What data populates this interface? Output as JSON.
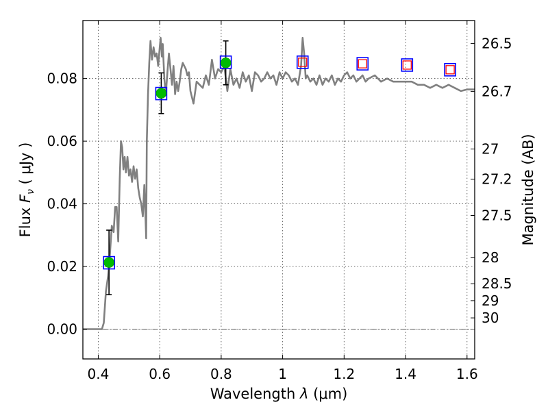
{
  "chart_data": {
    "type": "scatter",
    "xlabel": "Wavelength",
    "xlabel_symbol": "λ",
    "xlabel_unit": "(μm)",
    "ylabel": "Flux",
    "ylabel_symbol": "F",
    "ylabel_sub": "ν",
    "ylabel_unit": "( μJy )",
    "y2label": "Magnitude (AB)",
    "xlim": [
      0.35,
      1.625
    ],
    "ylim": [
      -0.0095,
      0.0985
    ],
    "grid": true,
    "x_ticks": [
      0.4,
      0.6,
      0.8,
      1.0,
      1.2,
      1.4,
      1.6
    ],
    "x_tick_labels": [
      "0.4",
      "0.6",
      "0.8",
      "1",
      "1.2",
      "1.4",
      "1.6"
    ],
    "y_ticks": [
      0.0,
      0.02,
      0.04,
      0.06,
      0.08
    ],
    "y_tick_labels": [
      "0.00",
      "0.02",
      "0.04",
      "0.06",
      "0.08"
    ],
    "y2_ticks": [
      {
        "label": "26.5",
        "flux": 0.0912
      },
      {
        "label": "26.7",
        "flux": 0.0759
      },
      {
        "label": "27",
        "flux": 0.0575
      },
      {
        "label": "27.2",
        "flux": 0.0479
      },
      {
        "label": "27.5",
        "flux": 0.0363
      },
      {
        "label": "28",
        "flux": 0.0229
      },
      {
        "label": "28.5",
        "flux": 0.0145
      },
      {
        "label": "29",
        "flux": 0.0091
      },
      {
        "label": "30",
        "flux": 0.0036
      }
    ],
    "reference_line": {
      "y": 0.0,
      "style": "dash-dot"
    },
    "observed": {
      "x": [
        0.435,
        0.605,
        0.815
      ],
      "y": [
        0.0213,
        0.0753,
        0.085
      ],
      "yerr": [
        0.0103,
        0.0065,
        0.007
      ],
      "marker": "green-circle"
    },
    "model_boxes": {
      "x": [
        0.435,
        0.605,
        0.815,
        1.065,
        1.26,
        1.405,
        1.545
      ],
      "y": [
        0.0212,
        0.0752,
        0.0852,
        0.0852,
        0.0847,
        0.0843,
        0.0828
      ],
      "marker": "blue-square"
    },
    "predicted": {
      "x": [
        1.065,
        1.26,
        1.405,
        1.545
      ],
      "y": [
        0.0852,
        0.0847,
        0.0843,
        0.0828
      ],
      "marker": "red-square"
    },
    "spectrum": {
      "color": "#808080",
      "x": [
        0.35,
        0.4,
        0.412,
        0.418,
        0.425,
        0.432,
        0.438,
        0.444,
        0.45,
        0.455,
        0.46,
        0.465,
        0.47,
        0.474,
        0.478,
        0.482,
        0.486,
        0.49,
        0.495,
        0.5,
        0.505,
        0.51,
        0.515,
        0.52,
        0.525,
        0.53,
        0.535,
        0.54,
        0.545,
        0.55,
        0.554,
        0.556,
        0.558,
        0.562,
        0.566,
        0.57,
        0.575,
        0.58,
        0.585,
        0.59,
        0.595,
        0.6,
        0.603,
        0.607,
        0.61,
        0.615,
        0.62,
        0.625,
        0.63,
        0.635,
        0.64,
        0.645,
        0.65,
        0.655,
        0.66,
        0.665,
        0.67,
        0.675,
        0.68,
        0.685,
        0.69,
        0.695,
        0.7,
        0.71,
        0.72,
        0.73,
        0.74,
        0.75,
        0.76,
        0.77,
        0.78,
        0.79,
        0.8,
        0.81,
        0.82,
        0.83,
        0.84,
        0.85,
        0.86,
        0.87,
        0.88,
        0.89,
        0.9,
        0.91,
        0.92,
        0.93,
        0.94,
        0.95,
        0.96,
        0.97,
        0.98,
        0.99,
        1.0,
        1.01,
        1.02,
        1.03,
        1.04,
        1.05,
        1.06,
        1.065,
        1.07,
        1.075,
        1.08,
        1.09,
        1.1,
        1.11,
        1.12,
        1.13,
        1.14,
        1.15,
        1.16,
        1.17,
        1.18,
        1.19,
        1.2,
        1.21,
        1.22,
        1.23,
        1.24,
        1.25,
        1.26,
        1.27,
        1.28,
        1.3,
        1.32,
        1.34,
        1.36,
        1.38,
        1.4,
        1.42,
        1.44,
        1.46,
        1.48,
        1.5,
        1.52,
        1.54,
        1.56,
        1.58,
        1.6,
        1.625
      ],
      "y": [
        0.0,
        0.0,
        0.0,
        0.002,
        0.012,
        0.017,
        0.024,
        0.033,
        0.031,
        0.039,
        0.039,
        0.028,
        0.048,
        0.06,
        0.058,
        0.051,
        0.055,
        0.05,
        0.055,
        0.049,
        0.051,
        0.047,
        0.052,
        0.048,
        0.051,
        0.045,
        0.042,
        0.04,
        0.036,
        0.046,
        0.035,
        0.029,
        0.06,
        0.075,
        0.085,
        0.092,
        0.086,
        0.09,
        0.087,
        0.088,
        0.084,
        0.09,
        0.093,
        0.087,
        0.091,
        0.08,
        0.075,
        0.082,
        0.088,
        0.083,
        0.078,
        0.084,
        0.075,
        0.079,
        0.076,
        0.079,
        0.083,
        0.085,
        0.084,
        0.083,
        0.081,
        0.082,
        0.076,
        0.072,
        0.079,
        0.078,
        0.077,
        0.081,
        0.078,
        0.086,
        0.08,
        0.083,
        0.082,
        0.084,
        0.076,
        0.083,
        0.078,
        0.08,
        0.077,
        0.082,
        0.079,
        0.081,
        0.076,
        0.082,
        0.081,
        0.079,
        0.08,
        0.082,
        0.08,
        0.081,
        0.078,
        0.082,
        0.08,
        0.082,
        0.081,
        0.079,
        0.08,
        0.078,
        0.084,
        0.093,
        0.088,
        0.08,
        0.081,
        0.079,
        0.08,
        0.078,
        0.081,
        0.078,
        0.08,
        0.079,
        0.081,
        0.078,
        0.08,
        0.079,
        0.081,
        0.082,
        0.08,
        0.081,
        0.079,
        0.08,
        0.081,
        0.079,
        0.08,
        0.081,
        0.079,
        0.08,
        0.079,
        0.079,
        0.079,
        0.079,
        0.078,
        0.078,
        0.077,
        0.078,
        0.077,
        0.078,
        0.077,
        0.076,
        0.0765,
        0.0765
      ]
    }
  }
}
